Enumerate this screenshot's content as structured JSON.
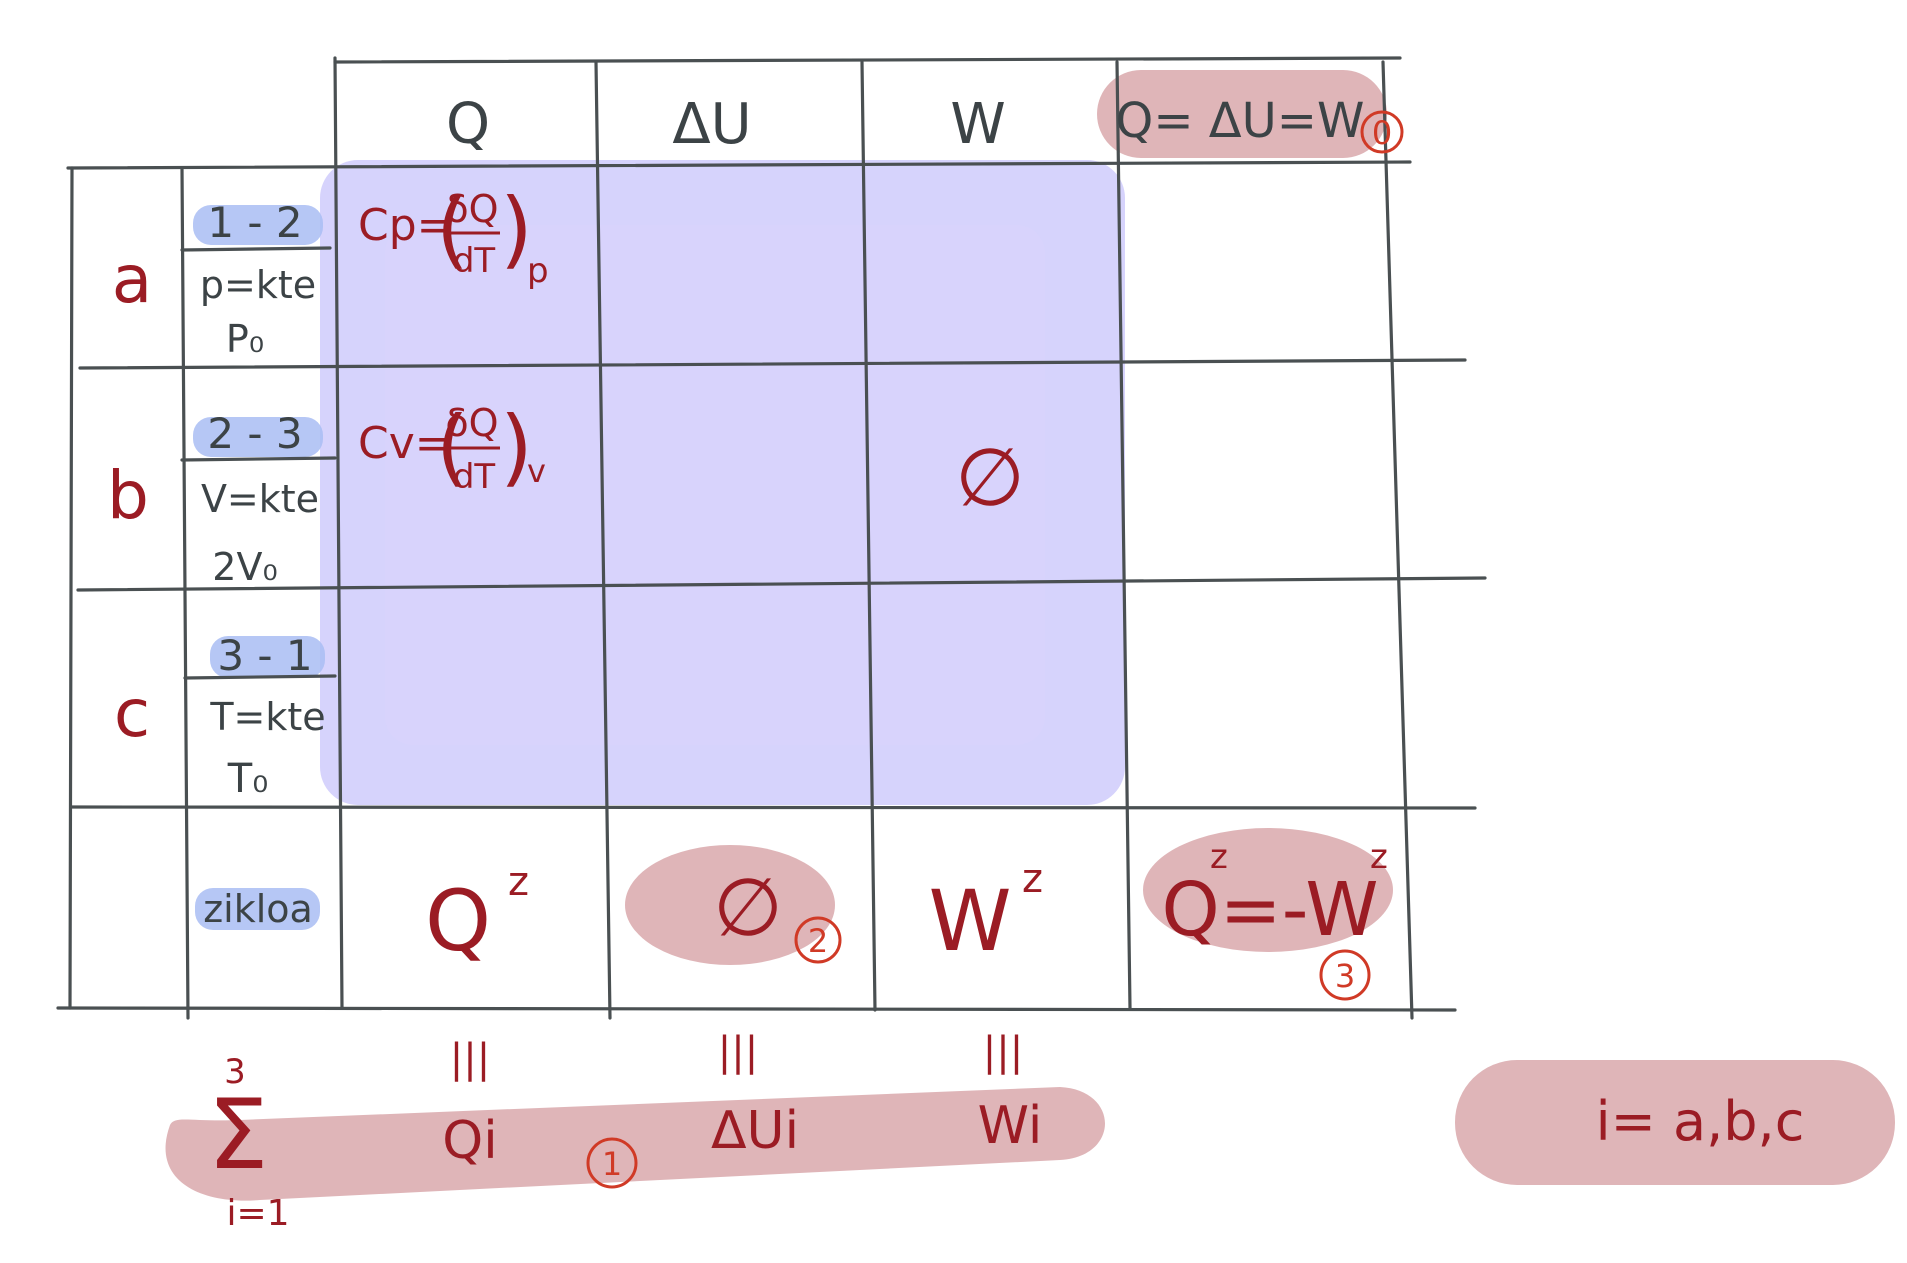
{
  "colors": {
    "grid_ink": "#4a5052",
    "dark_ink": "#3c4346",
    "red_ink": "#9b1c24",
    "number_ink": "#d03a26",
    "pink_highlight": "#d9a8ab",
    "lavender_highlight": "#cfcbfb",
    "blue_highlight": "#a9bdf3"
  },
  "header": {
    "q": "Q",
    "du": "ΔU",
    "w": "W",
    "first_law": "Q= ΔU=W",
    "first_law_number": "0"
  },
  "rows": [
    {
      "label": "a",
      "step": "1 - 2",
      "condition": "p=kte",
      "value": "P₀",
      "q_cell": {
        "left": "Cp=",
        "frac_num": "δQ",
        "frac_den": "dT",
        "sub": "p"
      }
    },
    {
      "label": "b",
      "step": "2 - 3",
      "condition": "V=kte",
      "value": "2V₀",
      "q_cell": {
        "left": "Cv=",
        "frac_num": "δQ",
        "frac_den": "dT",
        "sub": "v"
      },
      "w_cell": "∅"
    },
    {
      "label": "c",
      "step": "3 - 1",
      "condition": "T=kte",
      "value": "T₀"
    }
  ],
  "cycle_row": {
    "label": "zikloa",
    "q": "Q",
    "q_sup": "z",
    "du": "∅",
    "du_number": "2",
    "w": "W",
    "w_sup": "z",
    "relation": "Q=-W",
    "relation_sup_q": "z",
    "relation_sup_w": "z",
    "relation_number": "3"
  },
  "sum_row": {
    "equiv": "|||",
    "sum_symbol": "Σ",
    "sum_upper": "3",
    "sum_lower": "i=1",
    "qi": "Qi",
    "dui": "ΔUi",
    "wi": "Wi",
    "number": "1"
  },
  "index_note": "i= a,b,c"
}
